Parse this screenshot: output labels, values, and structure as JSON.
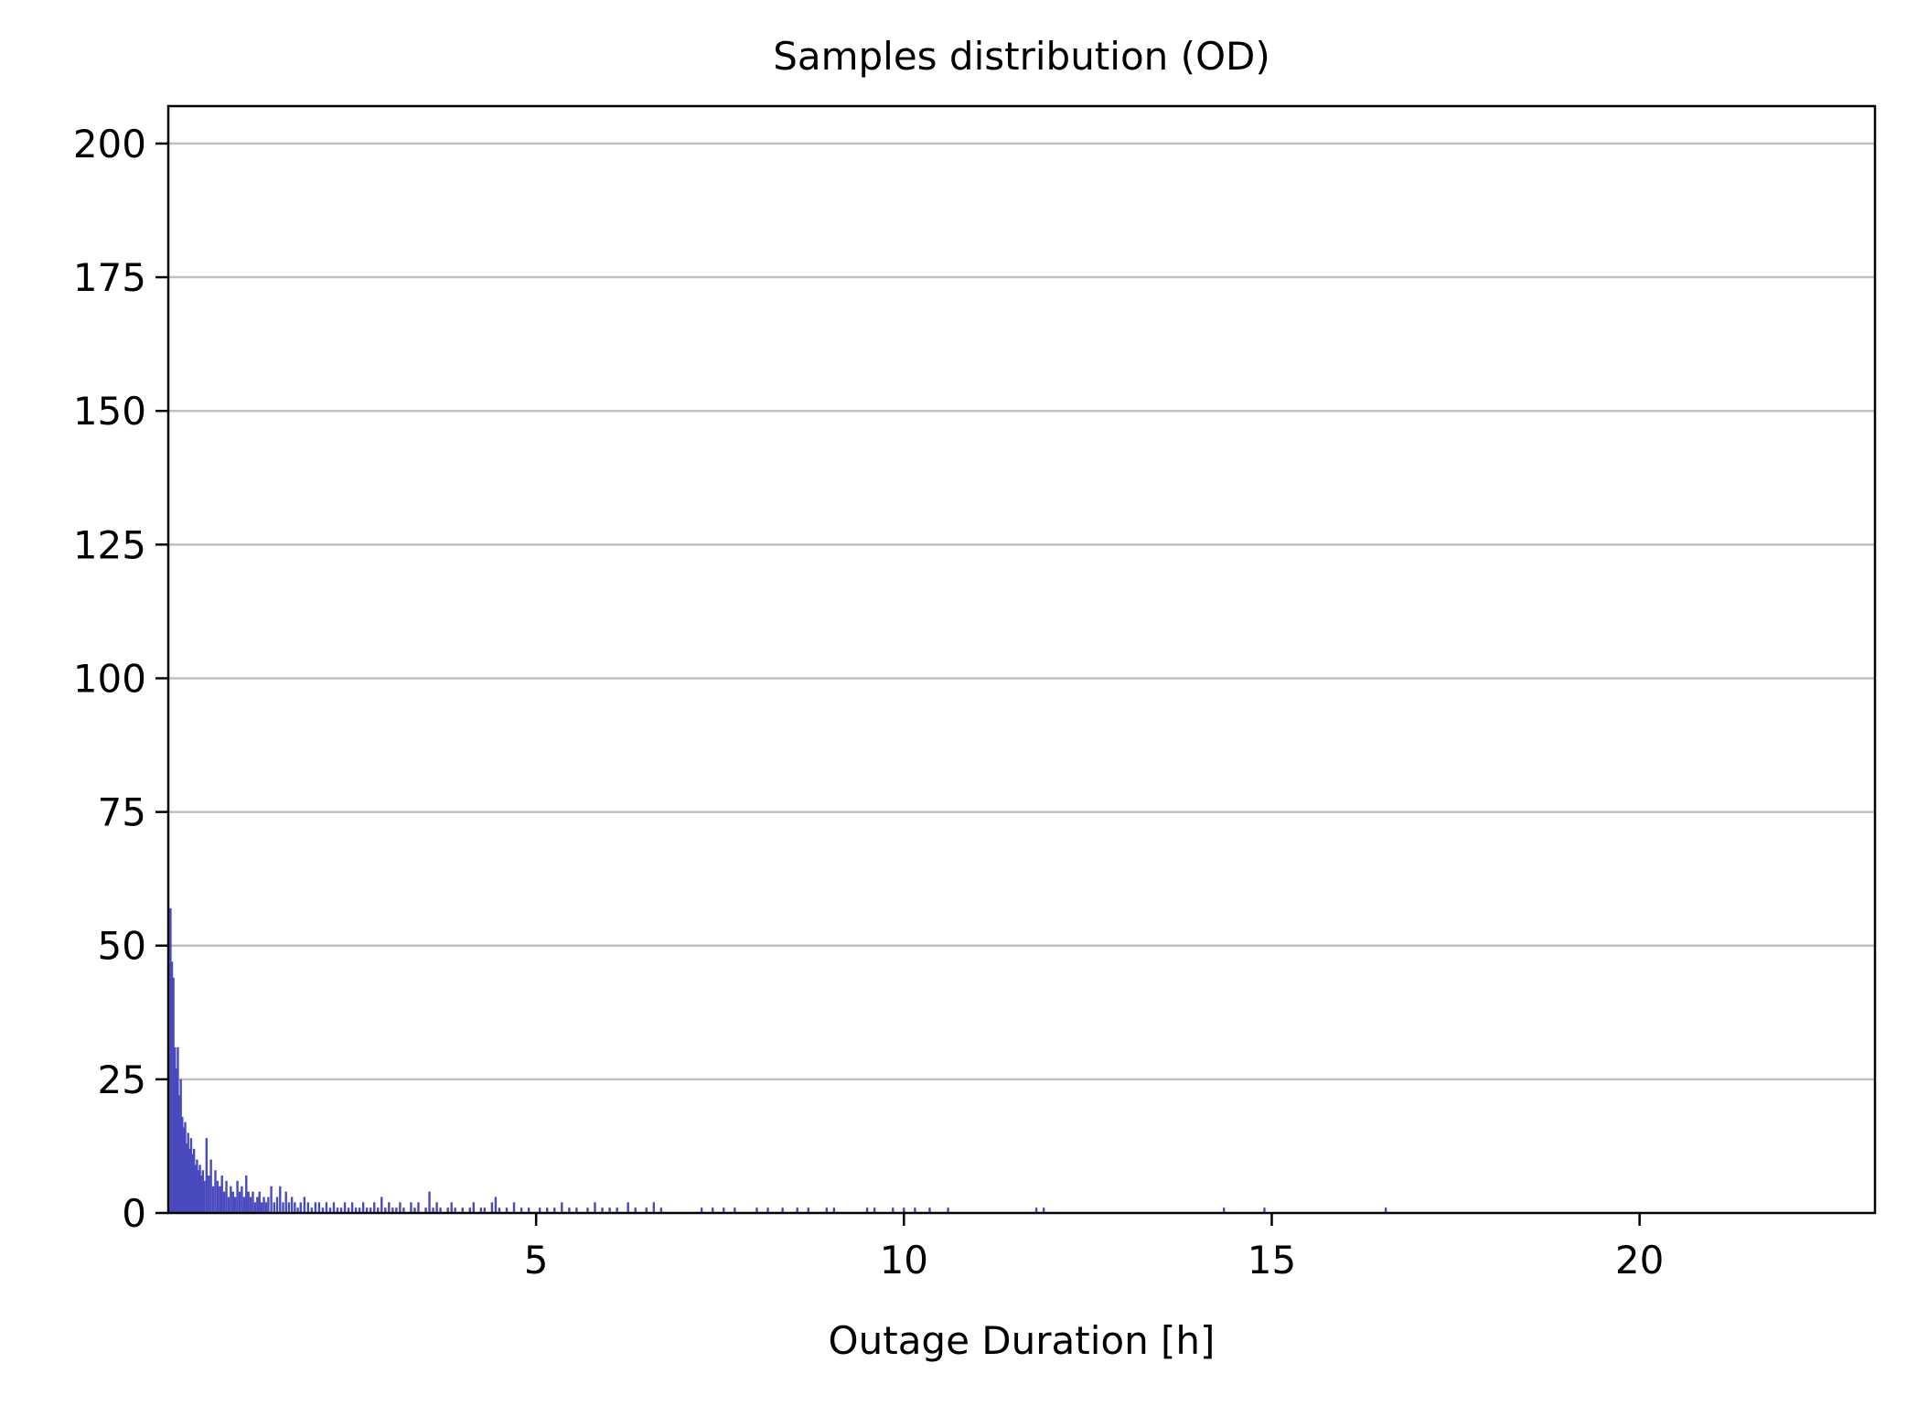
{
  "chart_data": {
    "type": "bar",
    "title": "Samples distribution (OD)",
    "xlabel": "Outage Duration [h]",
    "ylabel": "",
    "xlim": [
      0,
      23.2
    ],
    "ylim": [
      0,
      207
    ],
    "xticks": [
      5,
      10,
      15,
      20
    ],
    "yticks": [
      0,
      25,
      50,
      75,
      100,
      125,
      150,
      175,
      200
    ],
    "grid": "y",
    "bar_color": "#4a4abf",
    "bars": [
      {
        "x": 0.03,
        "y": 57
      },
      {
        "x": 0.05,
        "y": 47
      },
      {
        "x": 0.07,
        "y": 44
      },
      {
        "x": 0.09,
        "y": 31
      },
      {
        "x": 0.11,
        "y": 27
      },
      {
        "x": 0.13,
        "y": 31
      },
      {
        "x": 0.15,
        "y": 22
      },
      {
        "x": 0.17,
        "y": 25
      },
      {
        "x": 0.19,
        "y": 18
      },
      {
        "x": 0.21,
        "y": 16
      },
      {
        "x": 0.23,
        "y": 17
      },
      {
        "x": 0.25,
        "y": 13
      },
      {
        "x": 0.27,
        "y": 15
      },
      {
        "x": 0.29,
        "y": 12
      },
      {
        "x": 0.31,
        "y": 14
      },
      {
        "x": 0.33,
        "y": 11
      },
      {
        "x": 0.35,
        "y": 12
      },
      {
        "x": 0.37,
        "y": 9
      },
      {
        "x": 0.39,
        "y": 10
      },
      {
        "x": 0.41,
        "y": 8
      },
      {
        "x": 0.43,
        "y": 9
      },
      {
        "x": 0.45,
        "y": 7
      },
      {
        "x": 0.47,
        "y": 8
      },
      {
        "x": 0.49,
        "y": 6
      },
      {
        "x": 0.52,
        "y": 14
      },
      {
        "x": 0.55,
        "y": 7
      },
      {
        "x": 0.58,
        "y": 10
      },
      {
        "x": 0.61,
        "y": 5
      },
      {
        "x": 0.64,
        "y": 8
      },
      {
        "x": 0.67,
        "y": 6
      },
      {
        "x": 0.7,
        "y": 5
      },
      {
        "x": 0.73,
        "y": 7
      },
      {
        "x": 0.76,
        "y": 4
      },
      {
        "x": 0.79,
        "y": 6
      },
      {
        "x": 0.82,
        "y": 3
      },
      {
        "x": 0.85,
        "y": 5
      },
      {
        "x": 0.88,
        "y": 4
      },
      {
        "x": 0.91,
        "y": 3
      },
      {
        "x": 0.94,
        "y": 6
      },
      {
        "x": 0.97,
        "y": 4
      },
      {
        "x": 1.0,
        "y": 5
      },
      {
        "x": 1.03,
        "y": 3
      },
      {
        "x": 1.06,
        "y": 7
      },
      {
        "x": 1.09,
        "y": 4
      },
      {
        "x": 1.12,
        "y": 3
      },
      {
        "x": 1.15,
        "y": 4
      },
      {
        "x": 1.18,
        "y": 2
      },
      {
        "x": 1.21,
        "y": 3
      },
      {
        "x": 1.24,
        "y": 4
      },
      {
        "x": 1.27,
        "y": 2
      },
      {
        "x": 1.3,
        "y": 3
      },
      {
        "x": 1.33,
        "y": 2
      },
      {
        "x": 1.36,
        "y": 3
      },
      {
        "x": 1.4,
        "y": 5
      },
      {
        "x": 1.44,
        "y": 2
      },
      {
        "x": 1.48,
        "y": 3
      },
      {
        "x": 1.52,
        "y": 5
      },
      {
        "x": 1.56,
        "y": 2
      },
      {
        "x": 1.6,
        "y": 4
      },
      {
        "x": 1.64,
        "y": 2
      },
      {
        "x": 1.68,
        "y": 3
      },
      {
        "x": 1.72,
        "y": 2
      },
      {
        "x": 1.76,
        "y": 1
      },
      {
        "x": 1.8,
        "y": 2
      },
      {
        "x": 1.85,
        "y": 3
      },
      {
        "x": 1.9,
        "y": 2
      },
      {
        "x": 1.95,
        "y": 1
      },
      {
        "x": 2.0,
        "y": 2
      },
      {
        "x": 2.05,
        "y": 2
      },
      {
        "x": 2.1,
        "y": 1
      },
      {
        "x": 2.15,
        "y": 2
      },
      {
        "x": 2.2,
        "y": 1
      },
      {
        "x": 2.25,
        "y": 2
      },
      {
        "x": 2.3,
        "y": 1
      },
      {
        "x": 2.35,
        "y": 1
      },
      {
        "x": 2.4,
        "y": 2
      },
      {
        "x": 2.45,
        "y": 1
      },
      {
        "x": 2.5,
        "y": 2
      },
      {
        "x": 2.55,
        "y": 1
      },
      {
        "x": 2.6,
        "y": 1
      },
      {
        "x": 2.65,
        "y": 2
      },
      {
        "x": 2.7,
        "y": 1
      },
      {
        "x": 2.75,
        "y": 1
      },
      {
        "x": 2.8,
        "y": 2
      },
      {
        "x": 2.85,
        "y": 1
      },
      {
        "x": 2.9,
        "y": 3
      },
      {
        "x": 2.95,
        "y": 1
      },
      {
        "x": 3.0,
        "y": 2
      },
      {
        "x": 3.05,
        "y": 1
      },
      {
        "x": 3.1,
        "y": 1
      },
      {
        "x": 3.15,
        "y": 2
      },
      {
        "x": 3.2,
        "y": 1
      },
      {
        "x": 3.3,
        "y": 2
      },
      {
        "x": 3.35,
        "y": 1
      },
      {
        "x": 3.4,
        "y": 2
      },
      {
        "x": 3.5,
        "y": 1
      },
      {
        "x": 3.55,
        "y": 4
      },
      {
        "x": 3.6,
        "y": 1
      },
      {
        "x": 3.65,
        "y": 2
      },
      {
        "x": 3.7,
        "y": 1
      },
      {
        "x": 3.8,
        "y": 1
      },
      {
        "x": 3.85,
        "y": 2
      },
      {
        "x": 3.9,
        "y": 1
      },
      {
        "x": 4.0,
        "y": 1
      },
      {
        "x": 4.1,
        "y": 1
      },
      {
        "x": 4.15,
        "y": 2
      },
      {
        "x": 4.25,
        "y": 1
      },
      {
        "x": 4.3,
        "y": 1
      },
      {
        "x": 4.4,
        "y": 2
      },
      {
        "x": 4.45,
        "y": 3
      },
      {
        "x": 4.5,
        "y": 1
      },
      {
        "x": 4.6,
        "y": 1
      },
      {
        "x": 4.7,
        "y": 2
      },
      {
        "x": 4.8,
        "y": 1
      },
      {
        "x": 4.9,
        "y": 1
      },
      {
        "x": 5.05,
        "y": 1
      },
      {
        "x": 5.15,
        "y": 1
      },
      {
        "x": 5.25,
        "y": 1
      },
      {
        "x": 5.35,
        "y": 2
      },
      {
        "x": 5.45,
        "y": 1
      },
      {
        "x": 5.55,
        "y": 1
      },
      {
        "x": 5.7,
        "y": 1
      },
      {
        "x": 5.8,
        "y": 2
      },
      {
        "x": 5.9,
        "y": 1
      },
      {
        "x": 6.0,
        "y": 1
      },
      {
        "x": 6.1,
        "y": 1
      },
      {
        "x": 6.25,
        "y": 2
      },
      {
        "x": 6.35,
        "y": 1
      },
      {
        "x": 6.5,
        "y": 1
      },
      {
        "x": 6.6,
        "y": 2
      },
      {
        "x": 6.7,
        "y": 1
      },
      {
        "x": 7.25,
        "y": 1
      },
      {
        "x": 7.4,
        "y": 1
      },
      {
        "x": 7.55,
        "y": 1
      },
      {
        "x": 7.7,
        "y": 1
      },
      {
        "x": 8.0,
        "y": 1
      },
      {
        "x": 8.15,
        "y": 1
      },
      {
        "x": 8.35,
        "y": 1
      },
      {
        "x": 8.55,
        "y": 1
      },
      {
        "x": 8.7,
        "y": 1
      },
      {
        "x": 8.95,
        "y": 1
      },
      {
        "x": 9.05,
        "y": 1
      },
      {
        "x": 9.5,
        "y": 1
      },
      {
        "x": 9.6,
        "y": 1
      },
      {
        "x": 9.85,
        "y": 1
      },
      {
        "x": 10.0,
        "y": 1
      },
      {
        "x": 10.15,
        "y": 1
      },
      {
        "x": 10.35,
        "y": 1
      },
      {
        "x": 10.6,
        "y": 1
      },
      {
        "x": 11.8,
        "y": 1
      },
      {
        "x": 11.9,
        "y": 1
      },
      {
        "x": 14.35,
        "y": 1
      },
      {
        "x": 14.9,
        "y": 1
      },
      {
        "x": 16.55,
        "y": 1
      }
    ]
  }
}
